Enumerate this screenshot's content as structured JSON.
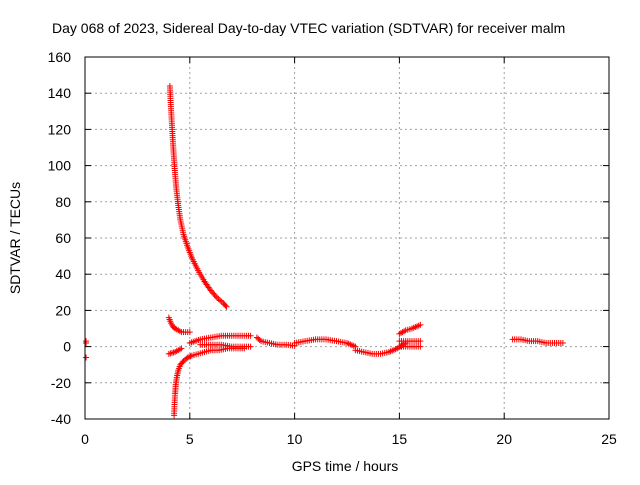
{
  "chart_data": {
    "type": "scatter",
    "title": "Day 068 of 2023, Sidereal Day-to-day VTEC variation (SDTVAR) for receiver malm",
    "xlabel": "GPS time / hours",
    "ylabel": "SDTVAR / TECUs",
    "xlim": [
      0,
      25
    ],
    "ylim": [
      -40,
      160
    ],
    "xticks": [
      0,
      5,
      10,
      15,
      20,
      25
    ],
    "yticks": [
      -40,
      -20,
      0,
      20,
      40,
      60,
      80,
      100,
      120,
      140,
      160
    ],
    "grid": true,
    "marker": "+",
    "series": [
      {
        "name": "SDTVAR",
        "color": "#ff0000",
        "segments": [
          {
            "x": [
              0.05,
              0.05
            ],
            "y": [
              3,
              2
            ]
          },
          {
            "x": [
              0.05
            ],
            "y": [
              -6
            ]
          },
          {
            "x": [
              4.05,
              4.08,
              4.12,
              4.16,
              4.2,
              4.25,
              4.3,
              4.36,
              4.45,
              4.55,
              4.7,
              4.9,
              5.1,
              5.4,
              5.7,
              6.0,
              6.3,
              6.6,
              6.75
            ],
            "y": [
              144,
              136,
              128,
              120,
              112,
              103,
              95,
              87,
              78,
              70,
              62,
              55,
              49,
              42,
              36,
              31,
              27,
              24,
              22
            ]
          },
          {
            "x": [
              4.0,
              4.1,
              4.2,
              4.3,
              4.45,
              4.6,
              4.8,
              5.0
            ],
            "y": [
              16,
              13,
              11,
              10,
              9,
              8,
              8,
              8
            ]
          },
          {
            "x": [
              4.25,
              4.27,
              4.3,
              4.33,
              4.38,
              4.45,
              4.55,
              4.7,
              4.9,
              5.1,
              5.4,
              5.7,
              6.0,
              6.4,
              6.8,
              7.2,
              7.6
            ],
            "y": [
              -38,
              -32,
              -26,
              -21,
              -17,
              -13,
              -10,
              -8,
              -6,
              -5,
              -4,
              -3,
              -2,
              -2,
              -1,
              -1,
              -1
            ]
          },
          {
            "x": [
              4.0,
              4.15,
              4.3,
              4.45,
              4.6
            ],
            "y": [
              -4,
              -3.5,
              -3,
              -2,
              -1
            ]
          },
          {
            "x": [
              5.0,
              5.5,
              6.0,
              6.5,
              7.0,
              7.5,
              7.9
            ],
            "y": [
              2,
              4,
              5,
              6,
              6,
              6,
              6
            ]
          },
          {
            "x": [
              5.5,
              6.0,
              6.5,
              7.0,
              7.5,
              7.9
            ],
            "y": [
              1,
              1,
              1,
              0,
              0,
              0
            ]
          },
          {
            "x": [
              8.2,
              8.4,
              8.8,
              9.2,
              9.6,
              10.0
            ],
            "y": [
              5,
              3,
              2,
              1,
              1,
              0.5
            ]
          },
          {
            "x": [
              10.0,
              10.5,
              11.0,
              11.5,
              12.0,
              12.5,
              12.9
            ],
            "y": [
              2,
              3,
              4,
              4,
              3,
              2,
              0
            ]
          },
          {
            "x": [
              12.9,
              13.3,
              13.7,
              14.1,
              14.5,
              14.9,
              15.3
            ],
            "y": [
              -2,
              -3,
              -4,
              -4,
              -3,
              -1,
              2
            ]
          },
          {
            "x": [
              15.0,
              15.3,
              15.6,
              16.0
            ],
            "y": [
              7,
              9,
              10,
              12
            ]
          },
          {
            "x": [
              15.0,
              15.4,
              15.8,
              16.0
            ],
            "y": [
              3,
              3,
              3,
              3
            ]
          },
          {
            "x": [
              15.0,
              15.4,
              15.8,
              16.0
            ],
            "y": [
              0,
              0,
              0,
              0
            ]
          },
          {
            "x": [
              20.4,
              20.8,
              21.2,
              21.6,
              22.0,
              22.4,
              22.8
            ],
            "y": [
              4,
              4,
              3,
              3,
              2,
              2,
              2
            ]
          }
        ]
      }
    ]
  }
}
